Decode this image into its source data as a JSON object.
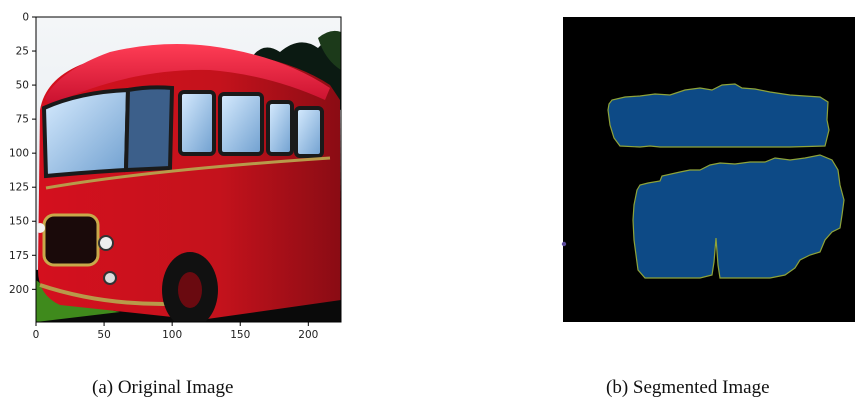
{
  "panel_a": {
    "caption": "(a) Original Image",
    "x_ticks": [
      "0",
      "50",
      "100",
      "150",
      "200"
    ],
    "y_ticks": [
      "0",
      "25",
      "50",
      "75",
      "100",
      "125",
      "150",
      "175",
      "200"
    ],
    "image_extent": [
      0,
      224
    ]
  },
  "panel_b": {
    "caption": "(b) Segmented Image",
    "background_color": "#000000",
    "segment_color": "#0d4a86",
    "edge_color": "#8ea33a"
  }
}
